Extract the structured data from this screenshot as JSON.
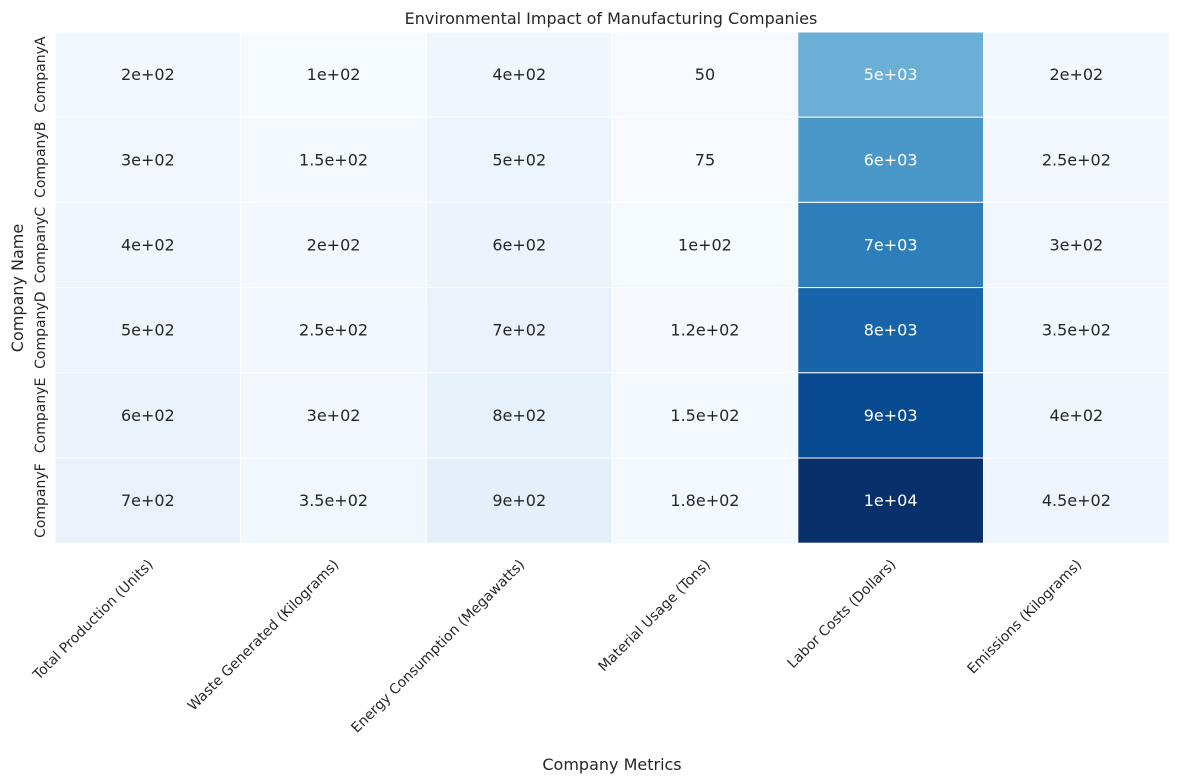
{
  "chart_data": {
    "type": "heatmap",
    "title": "Environmental Impact of Manufacturing Companies",
    "xlabel": "Company Metrics",
    "ylabel": "Company Name",
    "x_categories": [
      "Total Production (Units)",
      "Waste Generated (Kilograms)",
      "Energy Consumption (Megawatts)",
      "Material Usage (Tons)",
      "Labor Costs (Dollars)",
      "Emissions (Kilograms)"
    ],
    "y_categories": [
      "CompanyA",
      "CompanyB",
      "CompanyC",
      "CompanyD",
      "CompanyE",
      "CompanyF"
    ],
    "values": [
      [
        200,
        100,
        400,
        50,
        5000,
        200
      ],
      [
        300,
        150,
        500,
        75,
        6000,
        250
      ],
      [
        400,
        200,
        600,
        100,
        7000,
        300
      ],
      [
        500,
        250,
        700,
        120,
        8000,
        350
      ],
      [
        600,
        300,
        800,
        150,
        9000,
        400
      ],
      [
        700,
        350,
        900,
        180,
        10000,
        450
      ]
    ],
    "cell_labels": [
      [
        "2e+02",
        "1e+02",
        "4e+02",
        "50",
        "5e+03",
        "2e+02"
      ],
      [
        "3e+02",
        "1.5e+02",
        "5e+02",
        "75",
        "6e+03",
        "2.5e+02"
      ],
      [
        "4e+02",
        "2e+02",
        "6e+02",
        "1e+02",
        "7e+03",
        "3e+02"
      ],
      [
        "5e+02",
        "2.5e+02",
        "7e+02",
        "1.2e+02",
        "8e+03",
        "3.5e+02"
      ],
      [
        "6e+02",
        "3e+02",
        "8e+02",
        "1.5e+02",
        "9e+03",
        "4e+02"
      ],
      [
        "7e+02",
        "3.5e+02",
        "9e+02",
        "1.8e+02",
        "1e+04",
        "4.5e+02"
      ]
    ],
    "colormap": "Blues",
    "color_range": [
      0,
      10000
    ],
    "colorbar": false,
    "grid_line_color": "#ffffff",
    "text_dark": "#262626",
    "text_light": "#ffffff"
  }
}
